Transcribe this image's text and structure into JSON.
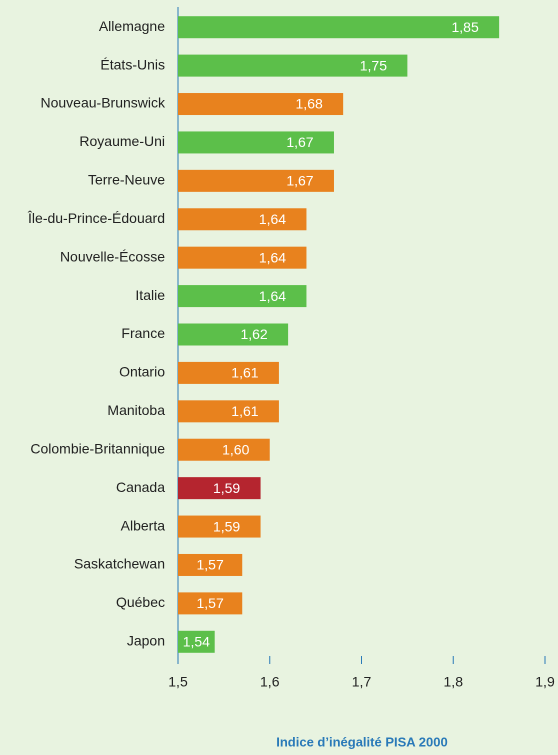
{
  "chart_data": {
    "type": "barh",
    "categories": [
      "Allemagne",
      "États-Unis",
      "Nouveau-Brunswick",
      "Royaume-Uni",
      "Terre-Neuve",
      "Île-du-Prince-Édouard",
      "Nouvelle-Écosse",
      "Italie",
      "France",
      "Ontario",
      "Manitoba",
      "Colombie-Britannique",
      "Canada",
      "Alberta",
      "Saskatchewan",
      "Québec",
      "Japon"
    ],
    "values": [
      1.85,
      1.75,
      1.68,
      1.67,
      1.67,
      1.64,
      1.64,
      1.64,
      1.62,
      1.61,
      1.61,
      1.6,
      1.59,
      1.59,
      1.57,
      1.57,
      1.54
    ],
    "value_labels": [
      "1,85",
      "1,75",
      "1,68",
      "1,67",
      "1,67",
      "1,64",
      "1,64",
      "1,64",
      "1,62",
      "1,61",
      "1,61",
      "1,60",
      "1,59",
      "1,59",
      "1,57",
      "1,57",
      "1,54"
    ],
    "colors": [
      "#5cbf4a",
      "#5cbf4a",
      "#e8821e",
      "#5cbf4a",
      "#e8821e",
      "#e8821e",
      "#e8821e",
      "#5cbf4a",
      "#5cbf4a",
      "#e8821e",
      "#e8821e",
      "#e8821e",
      "#b5252f",
      "#e8821e",
      "#e8821e",
      "#e8821e",
      "#5cbf4a"
    ],
    "xlabel": "Indice d’inégalité PISA 2000",
    "xlim": [
      1.5,
      1.9
    ],
    "xticks": [
      {
        "value": 1.5,
        "label": "1,5"
      },
      {
        "value": 1.6,
        "label": "1,6"
      },
      {
        "value": 1.7,
        "label": "1,7"
      },
      {
        "value": 1.8,
        "label": "1,8"
      },
      {
        "value": 1.9,
        "label": "1,9"
      }
    ]
  }
}
